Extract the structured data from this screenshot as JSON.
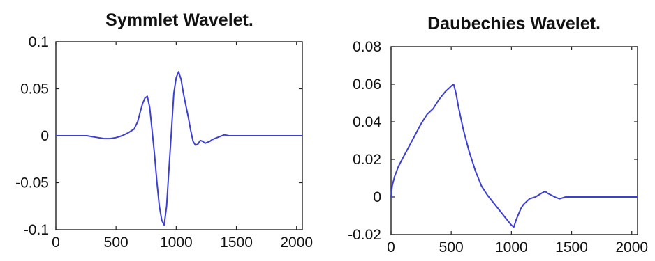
{
  "chart_data": [
    {
      "type": "line",
      "title": "Symmlet Wavelet.",
      "xlabel": "",
      "ylabel": "",
      "xlim": [
        0,
        2048
      ],
      "ylim": [
        -0.1,
        0.1
      ],
      "x_ticks": [
        0,
        500,
        1000,
        1500,
        2000
      ],
      "x_tick_labels": [
        "0",
        "500",
        "1000",
        "1500",
        "2000"
      ],
      "y_ticks": [
        0.1,
        0.05,
        0,
        -0.05,
        -0.1
      ],
      "y_tick_labels": [
        "0.1",
        "0.05",
        "0",
        "-0.05",
        "-0.1"
      ],
      "grid": false,
      "series": [
        {
          "color": "#3b3fd6",
          "x": [
            0,
            100,
            200,
            260,
            300,
            350,
            400,
            450,
            500,
            550,
            600,
            650,
            680,
            700,
            720,
            740,
            760,
            780,
            800,
            820,
            840,
            860,
            880,
            900,
            920,
            940,
            960,
            980,
            1000,
            1020,
            1040,
            1060,
            1080,
            1100,
            1120,
            1140,
            1160,
            1180,
            1200,
            1220,
            1240,
            1260,
            1280,
            1300,
            1320,
            1360,
            1400,
            1440,
            1500,
            1600,
            1800,
            2048
          ],
          "y": [
            0,
            0,
            0,
            0,
            -0.001,
            -0.002,
            -0.003,
            -0.003,
            -0.002,
            0,
            0.003,
            0.007,
            0.015,
            0.025,
            0.034,
            0.04,
            0.042,
            0.03,
            0.005,
            -0.02,
            -0.05,
            -0.075,
            -0.09,
            -0.095,
            -0.075,
            -0.035,
            0.005,
            0.045,
            0.062,
            0.068,
            0.06,
            0.045,
            0.032,
            0.02,
            0.006,
            -0.006,
            -0.01,
            -0.009,
            -0.005,
            -0.006,
            -0.008,
            -0.007,
            -0.006,
            -0.004,
            -0.003,
            -0.001,
            0.001,
            0,
            0,
            0,
            0,
            0
          ]
        }
      ]
    },
    {
      "type": "line",
      "title": "Daubechies Wavelet.",
      "xlabel": "",
      "ylabel": "",
      "xlim": [
        0,
        2048
      ],
      "ylim": [
        -0.02,
        0.08
      ],
      "x_ticks": [
        0,
        500,
        1000,
        1500,
        2000
      ],
      "x_tick_labels": [
        "0",
        "500",
        "1000",
        "1500",
        "2000"
      ],
      "y_ticks": [
        0.08,
        0.06,
        0.04,
        0.02,
        0,
        -0.02
      ],
      "y_tick_labels": [
        "0.08",
        "0.06",
        "0.04",
        "0.02",
        "0",
        "-0.02"
      ],
      "grid": false,
      "series": [
        {
          "color": "#3b3fd6",
          "x": [
            0,
            10,
            30,
            60,
            100,
            150,
            200,
            250,
            300,
            350,
            400,
            450,
            500,
            520,
            540,
            560,
            600,
            650,
            700,
            750,
            800,
            850,
            900,
            950,
            1000,
            1020,
            1040,
            1060,
            1080,
            1100,
            1150,
            1200,
            1250,
            1280,
            1300,
            1330,
            1360,
            1400,
            1450,
            1500,
            1600,
            1800,
            2048
          ],
          "y": [
            0,
            0.006,
            0.011,
            0.016,
            0.021,
            0.027,
            0.033,
            0.039,
            0.044,
            0.047,
            0.052,
            0.056,
            0.059,
            0.06,
            0.055,
            0.048,
            0.036,
            0.024,
            0.014,
            0.006,
            0.001,
            -0.003,
            -0.007,
            -0.011,
            -0.015,
            -0.016,
            -0.012,
            -0.009,
            -0.006,
            -0.004,
            -0.001,
            0,
            0.002,
            0.003,
            0.002,
            0.001,
            0,
            -0.001,
            0,
            0,
            0,
            0,
            0
          ]
        }
      ]
    }
  ]
}
